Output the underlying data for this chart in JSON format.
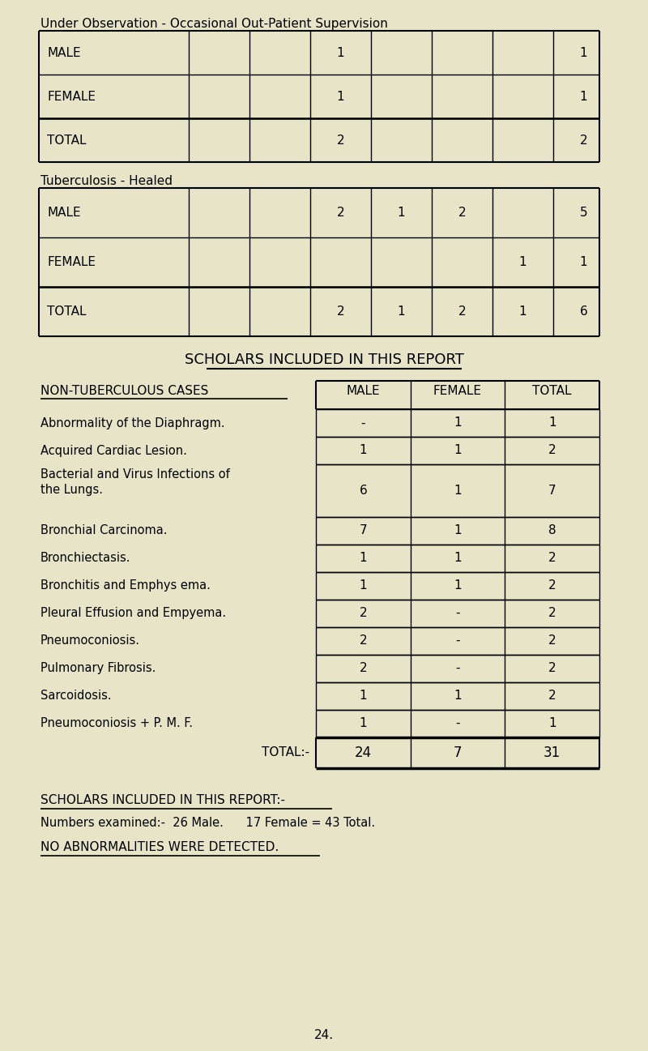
{
  "bg_color": "#e8e4c8",
  "title1": "Under Observation - Occasional Out-Patient Supervision",
  "title2": "Tuberculosis - Healed",
  "section_title": "SCHOLARS INCLUDED IN THIS REPORT",
  "nt_header": "NON-TUBERCULOUS CASES",
  "nt_col_headers": [
    "MALE",
    "FEMALE",
    "TOTAL"
  ],
  "nt_cases": [
    {
      "name": "Abnormality of the Diaphragm.",
      "male": "-",
      "female": "1",
      "total": "1"
    },
    {
      "name": "Acquired Cardiac Lesion.",
      "male": "1",
      "female": "1",
      "total": "2"
    },
    {
      "name": "Bacterial and Virus Infections of\nthe Lungs.",
      "male": "6",
      "female": "1",
      "total": "7"
    },
    {
      "name": "Bronchial Carcinoma.",
      "male": "7",
      "female": "1",
      "total": "8"
    },
    {
      "name": "Bronchiectasis.",
      "male": "1",
      "female": "1",
      "total": "2"
    },
    {
      "name": "Bronchitis and Emphys ema.",
      "male": "1",
      "female": "1",
      "total": "2"
    },
    {
      "name": "Pleural Effusion and Empyema.",
      "male": "2",
      "female": "-",
      "total": "2"
    },
    {
      "name": "Pneumoconiosis.",
      "male": "2",
      "female": "-",
      "total": "2"
    },
    {
      "name": "Pulmonary Fibrosis.",
      "male": "2",
      "female": "-",
      "total": "2"
    },
    {
      "name": "Sarcoidosis.",
      "male": "1",
      "female": "1",
      "total": "2"
    },
    {
      "name": "Pneumoconiosis + P. M. F.",
      "male": "1",
      "female": "-",
      "total": "1"
    }
  ],
  "nt_total_label": "TOTAL:-",
  "nt_totals": [
    "24",
    "7",
    "31"
  ],
  "footer1": "SCHOLARS INCLUDED IN THIS REPORT:-",
  "footer2": "Numbers examined:-  26 Male.      17 Female = 43 Total.",
  "footer3": "NO ABNORMALITIES WERE DETECTED.",
  "page_num": "24."
}
